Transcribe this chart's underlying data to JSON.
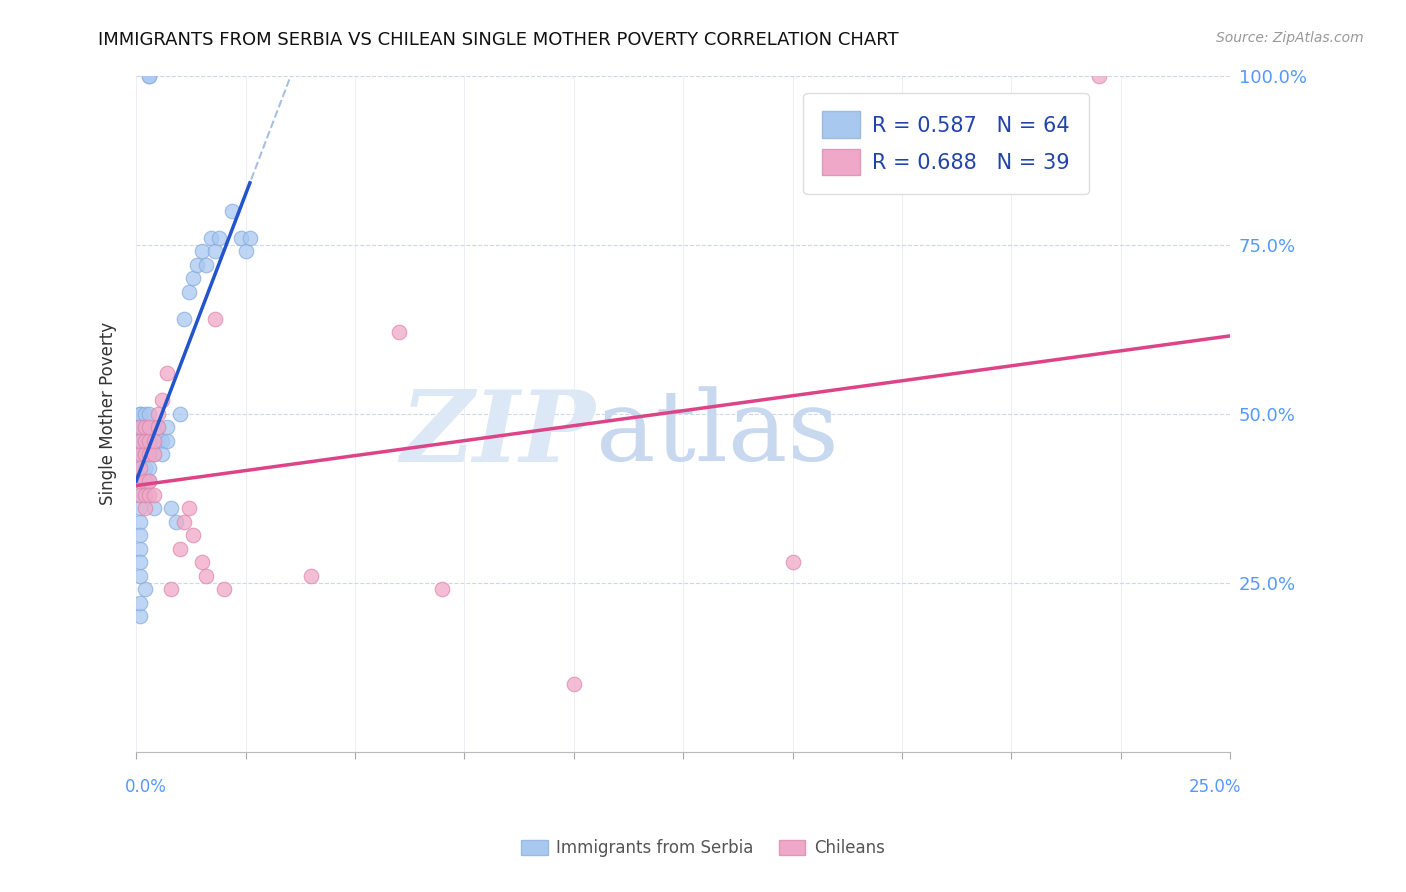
{
  "title": "IMMIGRANTS FROM SERBIA VS CHILEAN SINGLE MOTHER POVERTY CORRELATION CHART",
  "source": "Source: ZipAtlas.com",
  "ylabel": "Single Mother Poverty",
  "legend_blue_r": "R = 0.587",
  "legend_blue_n": "N = 64",
  "legend_pink_r": "R = 0.688",
  "legend_pink_n": "N = 39",
  "legend_blue_label": "Immigrants from Serbia",
  "legend_pink_label": "Chileans",
  "blue_color": "#a8c8f0",
  "pink_color": "#f0a8c8",
  "blue_line_color": "#2255cc",
  "pink_line_color": "#dd4488",
  "dashed_line_color": "#a8c0e0",
  "right_axis_color": "#5599ff",
  "xlim": [
    0,
    0.25
  ],
  "ylim": [
    0,
    1.0
  ],
  "serbia_x": [
    0.003,
    0.003,
    0.001,
    0.002,
    0.001,
    0.001,
    0.001,
    0.001,
    0.001,
    0.001,
    0.001,
    0.001,
    0.001,
    0.001,
    0.001,
    0.001,
    0.001,
    0.001,
    0.001,
    0.001,
    0.001,
    0.001,
    0.001,
    0.001,
    0.001,
    0.001,
    0.002,
    0.002,
    0.002,
    0.002,
    0.002,
    0.002,
    0.002,
    0.002,
    0.003,
    0.003,
    0.003,
    0.003,
    0.003,
    0.004,
    0.004,
    0.004,
    0.005,
    0.005,
    0.006,
    0.006,
    0.007,
    0.007,
    0.008,
    0.009,
    0.01,
    0.011,
    0.012,
    0.013,
    0.014,
    0.015,
    0.016,
    0.017,
    0.018,
    0.019,
    0.022,
    0.024,
    0.025,
    0.026
  ],
  "serbia_y": [
    1.0,
    1.0,
    0.2,
    0.24,
    0.22,
    0.3,
    0.34,
    0.36,
    0.38,
    0.4,
    0.42,
    0.44,
    0.46,
    0.48,
    0.48,
    0.5,
    0.26,
    0.28,
    0.32,
    0.46,
    0.48,
    0.5,
    0.48,
    0.46,
    0.44,
    0.42,
    0.48,
    0.46,
    0.44,
    0.42,
    0.4,
    0.38,
    0.5,
    0.44,
    0.46,
    0.48,
    0.5,
    0.42,
    0.4,
    0.44,
    0.46,
    0.36,
    0.46,
    0.48,
    0.46,
    0.44,
    0.46,
    0.48,
    0.36,
    0.34,
    0.5,
    0.64,
    0.68,
    0.7,
    0.72,
    0.74,
    0.72,
    0.76,
    0.74,
    0.76,
    0.8,
    0.76,
    0.74,
    0.76
  ],
  "chilean_x": [
    0.001,
    0.001,
    0.001,
    0.001,
    0.001,
    0.001,
    0.002,
    0.002,
    0.002,
    0.002,
    0.002,
    0.002,
    0.003,
    0.003,
    0.003,
    0.003,
    0.003,
    0.004,
    0.004,
    0.004,
    0.005,
    0.005,
    0.006,
    0.007,
    0.008,
    0.01,
    0.011,
    0.012,
    0.013,
    0.015,
    0.016,
    0.018,
    0.02,
    0.04,
    0.06,
    0.07,
    0.1,
    0.15,
    0.22
  ],
  "chilean_y": [
    0.44,
    0.46,
    0.48,
    0.38,
    0.4,
    0.42,
    0.44,
    0.46,
    0.48,
    0.36,
    0.38,
    0.4,
    0.44,
    0.46,
    0.48,
    0.4,
    0.38,
    0.44,
    0.46,
    0.38,
    0.5,
    0.48,
    0.52,
    0.56,
    0.24,
    0.3,
    0.34,
    0.36,
    0.32,
    0.28,
    0.26,
    0.64,
    0.24,
    0.26,
    0.62,
    0.24,
    0.1,
    0.28,
    1.0
  ]
}
